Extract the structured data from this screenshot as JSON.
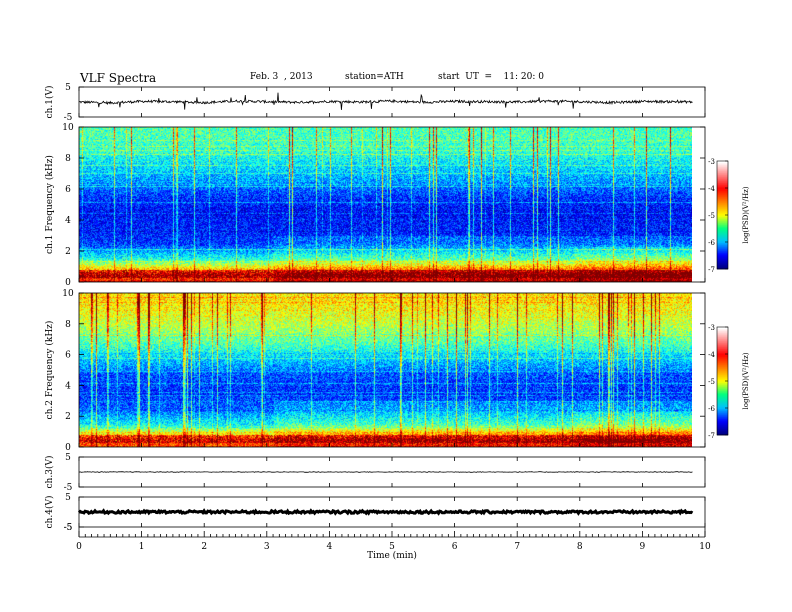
{
  "header": {
    "title": "VLF  Spectra",
    "date": "Feb. 3  , 2013",
    "station": "station=ATH",
    "start": "start  UT  =    11: 20: 0"
  },
  "chart_data": [
    {
      "type": "line",
      "ylabel": "ch.1(V)",
      "ylim": [
        -5,
        5
      ],
      "yticks": [
        "5",
        "-5"
      ],
      "x": [
        0,
        0.5,
        1,
        1.5,
        2,
        2.5,
        3,
        3.5,
        4,
        4.5,
        5,
        5.5,
        6,
        6.5,
        7,
        7.5,
        8,
        8.5,
        9,
        9.5,
        9.8
      ],
      "y": [
        0.0,
        -0.3,
        0.2,
        0.1,
        -0.2,
        0.3,
        0.1,
        -0.1,
        0.2,
        0.0,
        0.3,
        -0.1,
        0.2,
        0.1,
        0.0,
        0.3,
        0.1,
        -0.2,
        0.2,
        0.1,
        0.0
      ]
    },
    {
      "type": "heatmap",
      "ylabel": "ch.1  Frequency  (kHz)",
      "ylim": [
        0,
        10
      ],
      "yticks": [
        "0",
        "2",
        "4",
        "6",
        "8",
        "10"
      ],
      "xlim": [
        0,
        10
      ],
      "data_end_min": 9.8,
      "colorbar": {
        "label": "log(PSD)(V²/Hz)",
        "range": [
          -7,
          -3
        ],
        "ticks": [
          "-3",
          "-4",
          "-5",
          "-6",
          "-7"
        ]
      },
      "freq_khz": [
        0.5,
        1.5,
        2.5,
        3.5,
        4.5,
        5.5,
        6.5,
        7.5,
        8.5,
        9.5
      ],
      "log_psd_profile": [
        -3.6,
        -5.4,
        -6.3,
        -6.4,
        -6.5,
        -6.3,
        -5.9,
        -5.6,
        -5.3,
        -5.2
      ]
    },
    {
      "type": "heatmap",
      "ylabel": "ch.2  Frequency  (kHz)",
      "ylim": [
        0,
        10
      ],
      "yticks": [
        "0",
        "2",
        "4",
        "6",
        "8",
        "10"
      ],
      "xlim": [
        0,
        10
      ],
      "data_end_min": 9.8,
      "colorbar": {
        "label": "log(PSD)(V²/Hz)",
        "range": [
          -7,
          -3
        ],
        "ticks": [
          "-3",
          "-4",
          "-5",
          "-6",
          "-7"
        ]
      },
      "freq_khz": [
        0.5,
        1.5,
        2.5,
        3.5,
        4.5,
        5.5,
        6.5,
        7.5,
        8.5,
        9.5
      ],
      "log_psd_profile": [
        -3.8,
        -5.5,
        -6.1,
        -6.3,
        -6.2,
        -5.8,
        -5.3,
        -4.9,
        -4.6,
        -4.4
      ]
    },
    {
      "type": "line",
      "ylabel": "ch.3(V)",
      "ylim": [
        -5,
        5
      ],
      "yticks": [
        "5",
        "-5"
      ],
      "x": [
        0,
        9.8
      ],
      "y": [
        0,
        0
      ]
    },
    {
      "type": "line",
      "ylabel": "ch.4(V)",
      "ylim": [
        -5,
        5
      ],
      "yticks": [
        "5",
        "-5"
      ],
      "x": [
        0,
        9.8
      ],
      "y": [
        0,
        0
      ]
    }
  ],
  "xaxis": {
    "label": "Time  (min)",
    "ticks": [
      "0",
      "1",
      "2",
      "3",
      "4",
      "5",
      "6",
      "7",
      "8",
      "9",
      "10"
    ],
    "xlim": [
      0,
      10
    ]
  },
  "colors": {
    "jet": [
      "#00008f",
      "#0000ff",
      "#0080ff",
      "#00ffff",
      "#80ff80",
      "#ffff00",
      "#ff8000",
      "#ff0000",
      "#800000"
    ],
    "colorbar": [
      "#000080",
      "#0000ff",
      "#00c0ff",
      "#00ff80",
      "#ffff00",
      "#ff8000",
      "#ff0000",
      "#ff8080",
      "#ffffff"
    ]
  }
}
